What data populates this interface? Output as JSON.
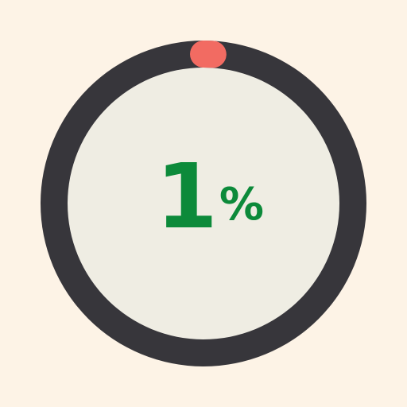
{
  "progress": {
    "percent": 1,
    "value_text": "1",
    "unit_text": "%"
  },
  "colors": {
    "background": "#fdf3e6",
    "track": "#37363b",
    "inner": "#efede3",
    "indicator": "#f26b62",
    "text": "#0c8a3a"
  }
}
